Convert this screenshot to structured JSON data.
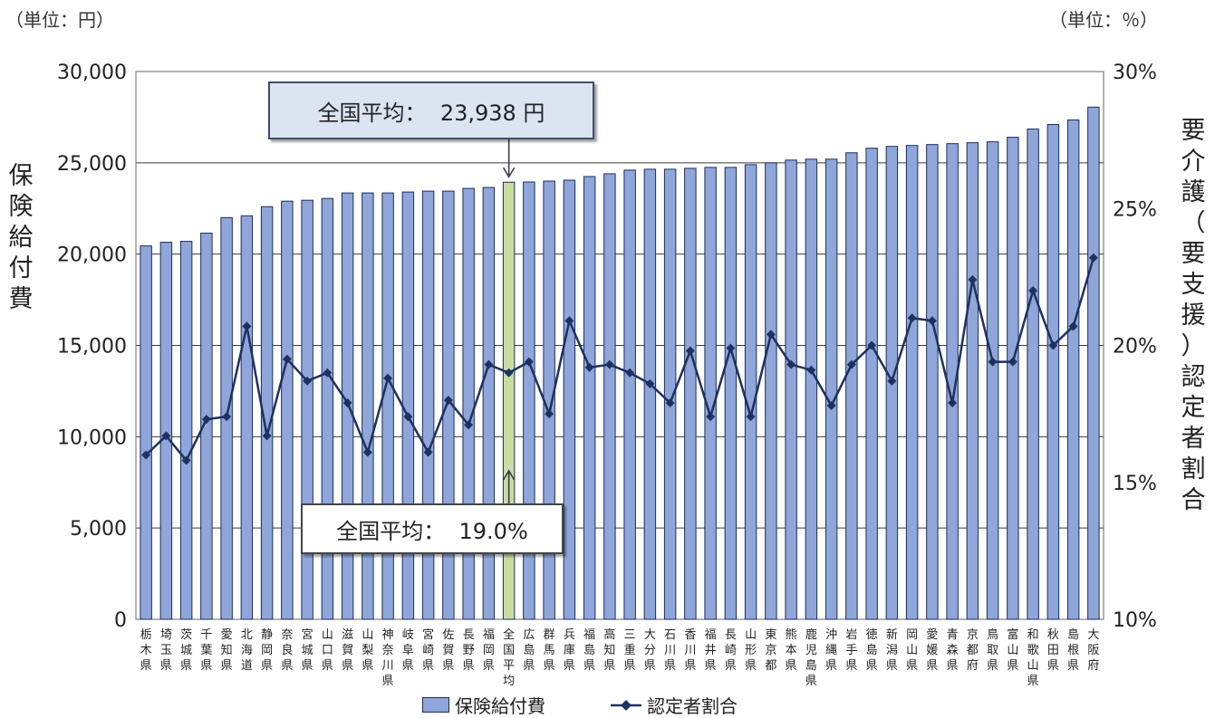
{
  "units": {
    "left": "（単位：円）",
    "right": "（単位：％）"
  },
  "axis_titles": {
    "left": "保険給付費",
    "right": "要介護（要支援）認定者割合"
  },
  "callouts": {
    "cost_avg": "全国平均：  23,938 円",
    "ratio_avg": "全国平均：  19.0%"
  },
  "legend": {
    "bar": "保険給付費",
    "line": "認定者割合"
  },
  "colors": {
    "bar_fill": "#8ea6d9",
    "bar_stroke": "#1f2c5a",
    "highlight_fill": "#c9dca2",
    "line": "#1f3160",
    "grid": "#3a3a3a"
  },
  "chart_data": {
    "type": "bar",
    "categories": [
      "栃木県",
      "埼玉県",
      "茨城県",
      "千葉県",
      "愛知県",
      "北海道",
      "静岡県",
      "奈良県",
      "宮城県",
      "山口県",
      "滋賀県",
      "山梨県",
      "神奈川県",
      "岐阜県",
      "宮崎県",
      "佐賀県",
      "長野県",
      "福岡県",
      "全国平均",
      "広島県",
      "群馬県",
      "兵庫県",
      "福島県",
      "高知県",
      "三重県",
      "大分県",
      "石川県",
      "香川県",
      "福井県",
      "長崎県",
      "山形県",
      "東京都",
      "熊本県",
      "鹿児島県",
      "沖縄県",
      "岩手県",
      "徳島県",
      "新潟県",
      "岡山県",
      "愛媛県",
      "青森県",
      "京都府",
      "鳥取県",
      "富山県",
      "和歌山県",
      "秋田県",
      "島根県",
      "大阪府"
    ],
    "highlight_category": "全国平均",
    "y_left": {
      "ticks": [
        "0",
        "5,000",
        "10,000",
        "15,000",
        "20,000",
        "25,000",
        "30,000"
      ],
      "min": 0,
      "max": 30000
    },
    "y_right": {
      "ticks": [
        "10%",
        "15%",
        "20%",
        "25%",
        "30%"
      ],
      "min": 10,
      "max": 30
    },
    "series": [
      {
        "name": "保険給付費",
        "type": "bar",
        "axis": "left",
        "values": [
          20450,
          20650,
          20700,
          21150,
          22000,
          22100,
          22600,
          22900,
          22950,
          23050,
          23350,
          23350,
          23350,
          23400,
          23450,
          23450,
          23600,
          23650,
          23938,
          23950,
          24000,
          24050,
          24250,
          24400,
          24600,
          24650,
          24650,
          24700,
          24750,
          24750,
          24900,
          25000,
          25150,
          25200,
          25200,
          25550,
          25800,
          25900,
          25950,
          26000,
          26050,
          26100,
          26150,
          26400,
          26850,
          27100,
          27350,
          28050
        ]
      },
      {
        "name": "認定者割合",
        "type": "line",
        "axis": "right",
        "values": [
          16.0,
          16.7,
          15.8,
          17.3,
          17.4,
          20.7,
          16.7,
          19.5,
          18.7,
          19.0,
          17.9,
          16.1,
          18.8,
          17.4,
          16.1,
          18.0,
          17.1,
          19.3,
          19.0,
          19.4,
          17.5,
          20.9,
          19.2,
          19.3,
          19.0,
          18.6,
          17.9,
          19.8,
          17.4,
          19.9,
          17.4,
          20.4,
          19.3,
          19.1,
          17.8,
          19.3,
          20.0,
          18.7,
          21.0,
          20.9,
          17.9,
          22.4,
          19.4,
          19.4,
          22.0,
          20.0,
          20.7,
          23.2
        ]
      }
    ]
  }
}
